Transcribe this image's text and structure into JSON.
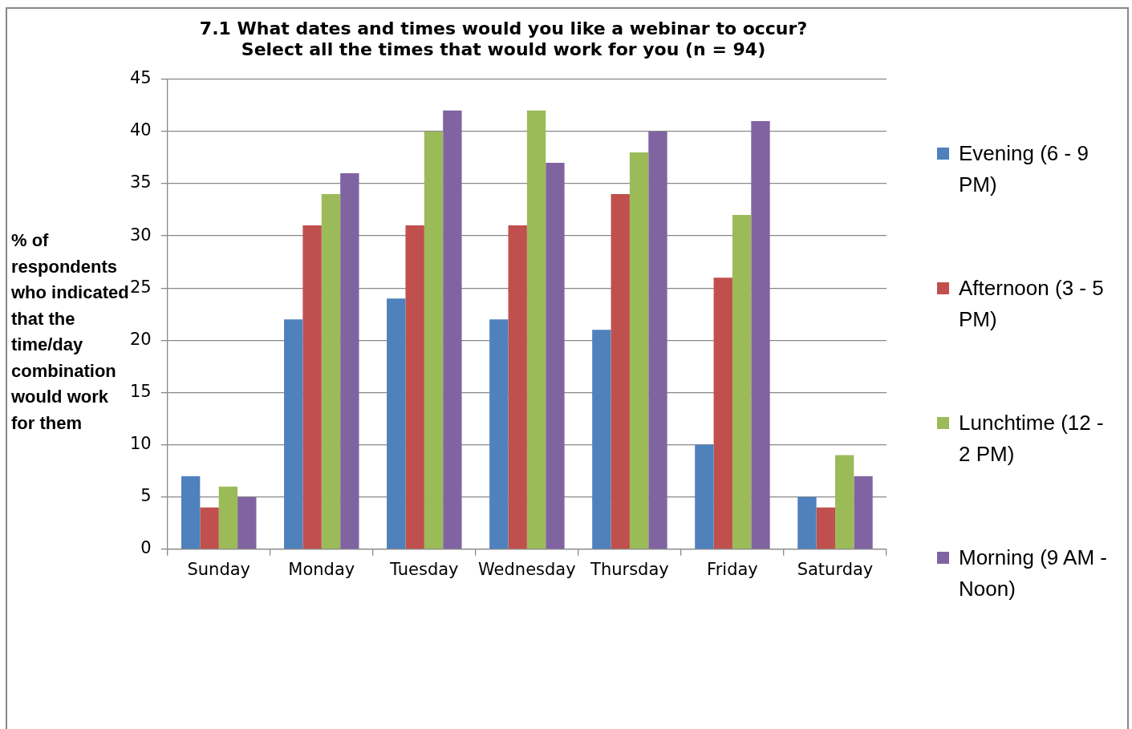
{
  "chart_data": {
    "type": "bar",
    "title": "7.1 What dates and times would you like a webinar to occur? Select all the times that would work for you (n = 94)",
    "ylabel": "% of respondents who indicated that the time/day combination would work  for them",
    "categories": [
      "Sunday",
      "Monday",
      "Tuesday",
      "Wednesday",
      "Thursday",
      "Friday",
      "Saturday"
    ],
    "ylim": [
      0,
      45
    ],
    "yticks": [
      0,
      5,
      10,
      15,
      20,
      25,
      30,
      35,
      40,
      45
    ],
    "grid": "y",
    "legend": "right",
    "series": [
      {
        "name": "Evening (6 - 9 PM)",
        "color": "#4f81bd",
        "values": [
          7,
          22,
          24,
          22,
          21,
          10,
          5
        ]
      },
      {
        "name": "Afternoon (3 - 5 PM)",
        "color": "#c0504d",
        "values": [
          4,
          31,
          31,
          31,
          34,
          26,
          4
        ]
      },
      {
        "name": "Lunchtime (12 - 2 PM)",
        "color": "#9bbb59",
        "values": [
          6,
          34,
          40,
          42,
          38,
          32,
          9
        ]
      },
      {
        "name": "Morning (9 AM - Noon)",
        "color": "#8064a2",
        "values": [
          5,
          36,
          42,
          37,
          40,
          41,
          7
        ]
      }
    ]
  }
}
